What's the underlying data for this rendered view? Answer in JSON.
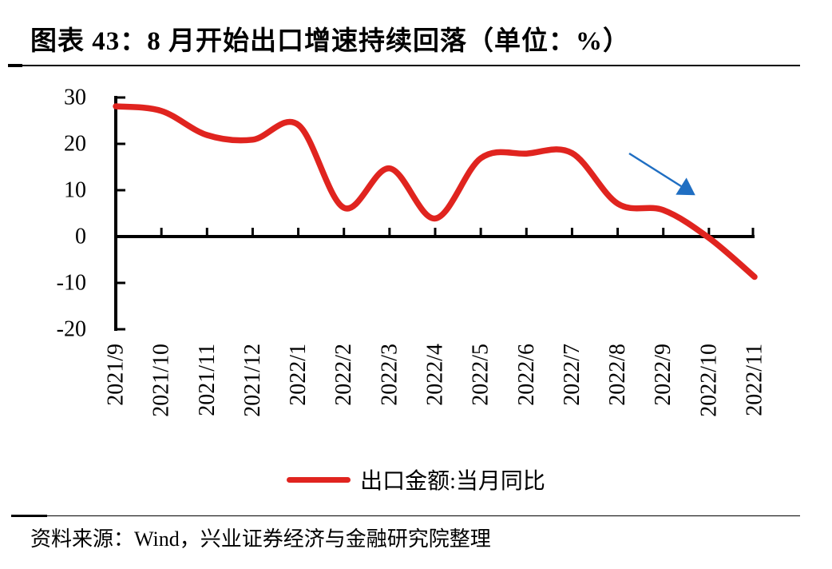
{
  "page": {
    "title": "图表 43：8 月开始出口增速持续回落（单位：%）",
    "source": "资料来源：Wind，兴业证券经济与金融研究院整理"
  },
  "colors": {
    "series_red": "#e0241f",
    "arrow_blue": "#1f6ec2",
    "axis_black": "#000000"
  },
  "chart_data": {
    "type": "line",
    "title": "图表 43：8 月开始出口增速持续回落（单位：%）",
    "unit": "%",
    "categories": [
      "2021/9",
      "2021/10",
      "2021/11",
      "2021/12",
      "2022/1",
      "2022/2",
      "2022/3",
      "2022/4",
      "2022/5",
      "2022/6",
      "2022/7",
      "2022/8",
      "2022/9",
      "2022/10",
      "2022/11"
    ],
    "series": [
      {
        "name": "出口金额:当月同比",
        "color": "#e0241f",
        "values": [
          28.1,
          27.1,
          21.9,
          20.9,
          24.1,
          6.2,
          14.7,
          3.9,
          16.9,
          17.9,
          18.0,
          7.1,
          5.7,
          -0.3,
          -8.7
        ]
      }
    ],
    "xlabel": "",
    "ylabel": "",
    "ylim": [
      -20,
      30
    ],
    "y_ticks": [
      30,
      20,
      10,
      0,
      -10,
      -20
    ],
    "grid": false,
    "smooth": true,
    "legend_position": "bottom",
    "x_label_rotation": -90,
    "annotation": {
      "type": "arrow",
      "color": "#1f6ec2",
      "from_xy": [
        788,
        192
      ],
      "to_xy": [
        853,
        233
      ]
    }
  }
}
